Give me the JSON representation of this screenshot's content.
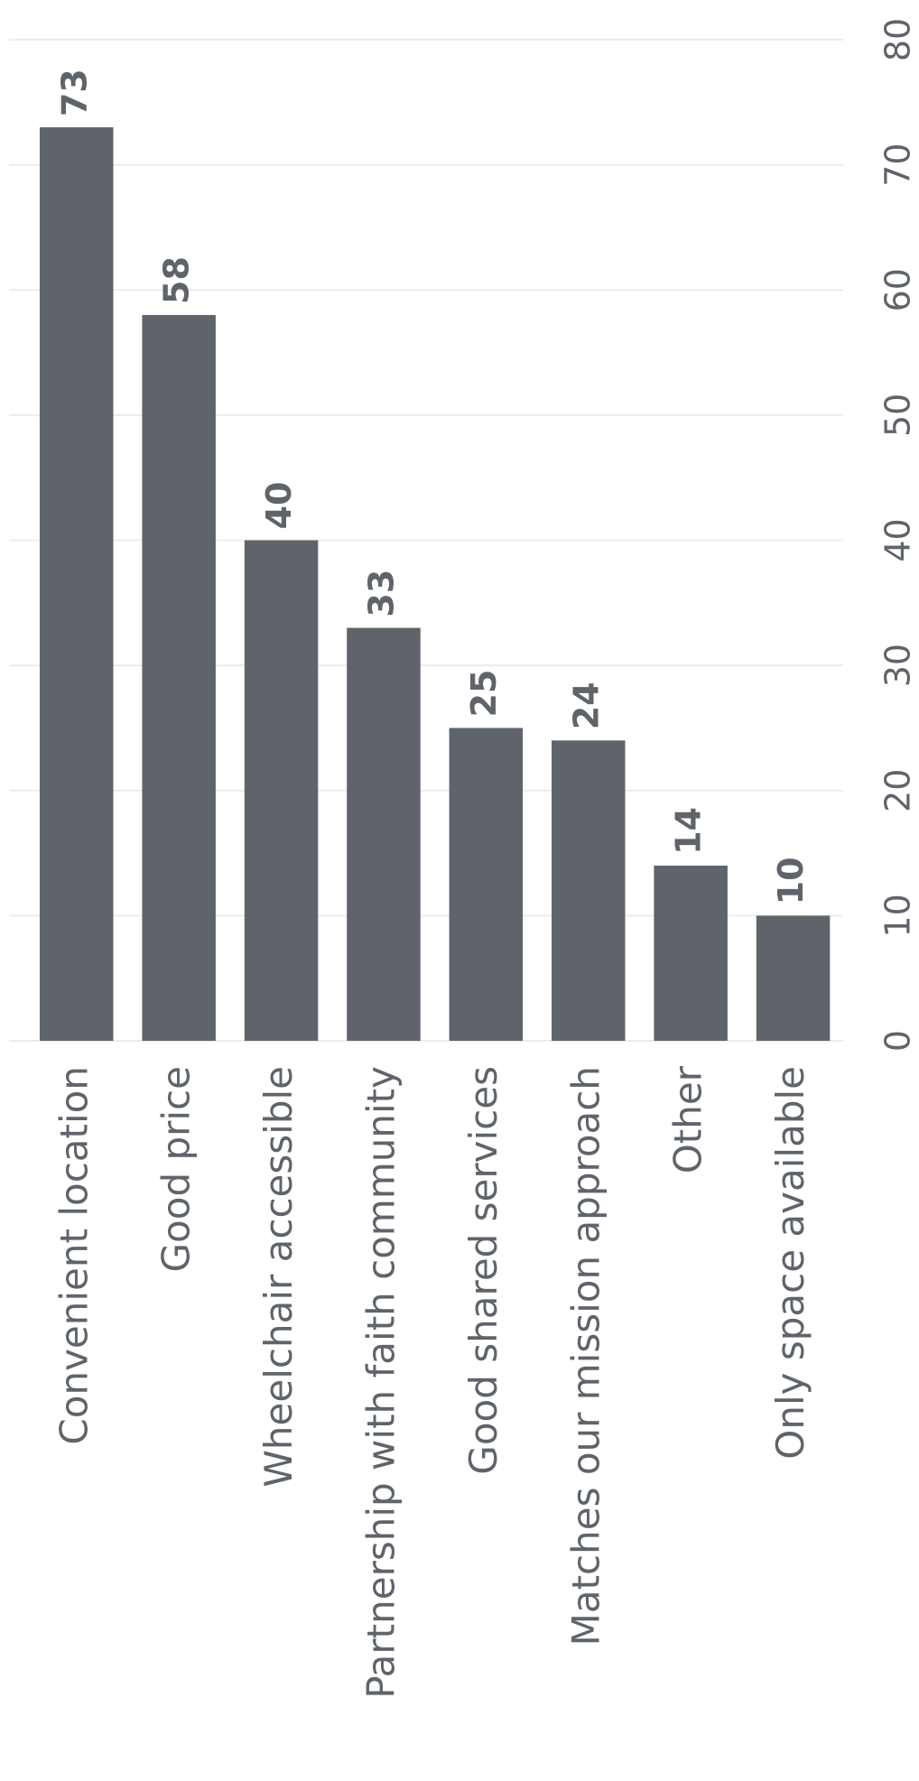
{
  "chart_data": {
    "type": "bar",
    "orientation": "vertical",
    "categories": [
      "Convenient location",
      "Good price",
      "Wheelchair accessible",
      "Partnership with faith community",
      "Good shared services",
      "Matches our mission approach",
      "Other",
      "Only space available"
    ],
    "values": [
      73,
      58,
      40,
      33,
      25,
      24,
      14,
      10
    ],
    "color": "#5f646b",
    "ylim": [
      0,
      80
    ],
    "yticks": [
      0,
      10,
      20,
      30,
      40,
      50,
      60,
      70,
      80
    ],
    "grid": true
  }
}
